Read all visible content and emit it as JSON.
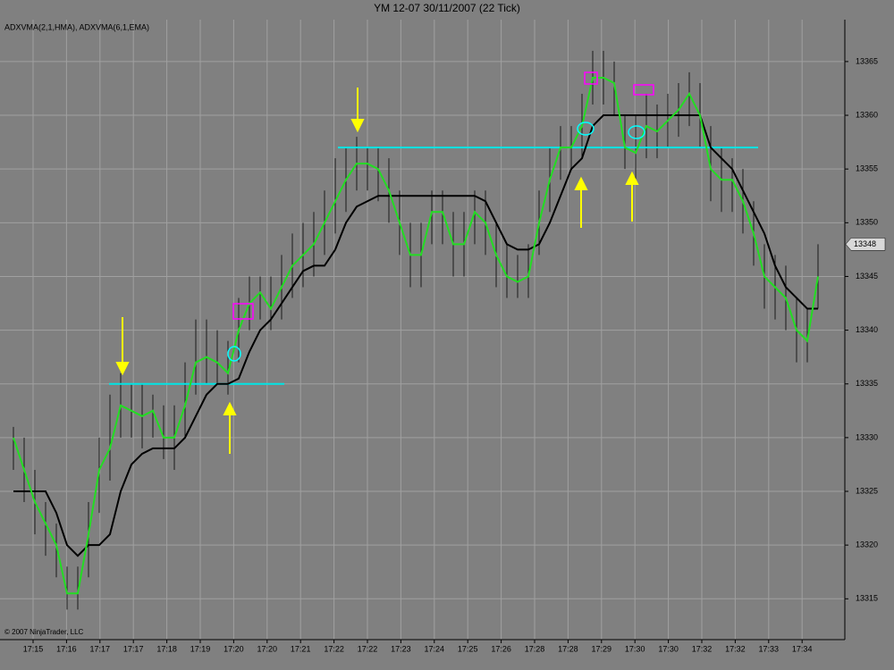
{
  "chart_data": {
    "type": "line",
    "title": "YM 12-07  30/11/2007  (22 Tick)",
    "indicator_label": "ADXVMA(2,1,HMA), ADXVMA(6,1,EMA)",
    "copyright": "© 2007 NinjaTrader, LLC",
    "x_tick_labels": [
      "17:15",
      "17:16",
      "17:17",
      "17:17",
      "17:18",
      "17:19",
      "17:20",
      "17:20",
      "17:21",
      "17:22",
      "17:22",
      "17:23",
      "17:24",
      "17:25",
      "17:26",
      "17:28",
      "17:28",
      "17:29",
      "17:30",
      "17:30",
      "17:32",
      "17:32",
      "17:33",
      "17:34"
    ],
    "ylim": [
      13311.2,
      13368.9
    ],
    "yticks": [
      13315,
      13320,
      13325,
      13330,
      13335,
      13340,
      13345,
      13350,
      13355,
      13360,
      13365
    ],
    "grid": true,
    "last_price": 13348,
    "levels": [
      13335,
      13357
    ],
    "bars": {
      "high": [
        13331,
        13330,
        13327,
        13324,
        13322,
        13318,
        13318,
        13324,
        13330,
        13334,
        13336,
        13335,
        13335,
        13334,
        13333,
        13333,
        13337,
        13341,
        13341,
        13340,
        13339,
        13343,
        13345,
        13345,
        13345,
        13347,
        13349,
        13350,
        13351,
        13353,
        13356,
        13357,
        13358,
        13357,
        13357,
        13356,
        13353,
        13350,
        13350,
        13353,
        13353,
        13351,
        13351,
        13353,
        13353,
        13350,
        13348,
        13347,
        13348,
        13353,
        13357,
        13359,
        13359,
        13362,
        13366,
        13366,
        13365,
        13360,
        13360,
        13362,
        13361,
        13362,
        13363,
        13364,
        13363,
        13359,
        13357,
        13356,
        13355,
        13352,
        13348,
        13347,
        13346,
        13343,
        13342,
        13348
      ],
      "low": [
        13327,
        13324,
        13321,
        13319,
        13317,
        13314,
        13314,
        13317,
        13323,
        13326,
        13330,
        13330,
        13329,
        13330,
        13328,
        13327,
        13330,
        13334,
        13335,
        13335,
        13334,
        13337,
        13340,
        13341,
        13340,
        13341,
        13343,
        13344,
        13345,
        13347,
        13349,
        13351,
        13353,
        13353,
        13352,
        13350,
        13347,
        13344,
        13344,
        13348,
        13348,
        13345,
        13345,
        13348,
        13347,
        13344,
        13343,
        13343,
        13343,
        13347,
        13351,
        13354,
        13355,
        13356,
        13361,
        13361,
        13360,
        13355,
        13354,
        13356,
        13356,
        13357,
        13358,
        13359,
        13357,
        13352,
        13351,
        13351,
        13349,
        13346,
        13342,
        13341,
        13340,
        13337,
        13337,
        13342
      ]
    },
    "series": [
      {
        "color": "#000000",
        "values": [
          13325,
          13325,
          13325,
          13325,
          13323,
          13320,
          13319,
          13320,
          13320,
          13321,
          13325,
          13327.5,
          13328.5,
          13329,
          13329,
          13329,
          13330,
          13332,
          13334,
          13335,
          13335,
          13335.5,
          13338,
          13340,
          13341,
          13342.5,
          13344,
          13345.5,
          13346,
          13346,
          13347.5,
          13350,
          13351.5,
          13352,
          13352.5,
          13352.5,
          13352.5,
          13352.5,
          13352.5,
          13352.5,
          13352.5,
          13352.5,
          13352.5,
          13352.5,
          13352,
          13350,
          13348,
          13347.5,
          13347.5,
          13348,
          13350,
          13352.5,
          13355,
          13356,
          13359,
          13360,
          13360,
          13360,
          13360,
          13360,
          13360,
          13360,
          13360,
          13360,
          13360,
          13357,
          13356,
          13355,
          13353,
          13351,
          13349,
          13346,
          13344,
          13343,
          13342,
          13342
        ]
      },
      {
        "color": "#22dd22",
        "values": [
          13330,
          13327,
          13324,
          13322,
          13320,
          13315.5,
          13315.5,
          13321,
          13327,
          13329,
          13333,
          13332.5,
          13332,
          13332.5,
          13330,
          13330,
          13333,
          13337,
          13337.5,
          13337,
          13336,
          13340,
          13342.5,
          13343.5,
          13342,
          13344,
          13346,
          13347,
          13348,
          13350,
          13352,
          13354,
          13355.5,
          13355.5,
          13355,
          13353,
          13350,
          13347,
          13347,
          13351,
          13351,
          13348,
          13348,
          13351,
          13350,
          13347,
          13345,
          13344.5,
          13345,
          13350,
          13354,
          13357,
          13357,
          13359,
          13363.5,
          13363.5,
          13363,
          13357,
          13356.5,
          13359,
          13358.5,
          13359.5,
          13360.5,
          13362,
          13360,
          13355,
          13354,
          13354,
          13352,
          13349,
          13345,
          13344,
          13343,
          13340,
          13339,
          13345
        ]
      }
    ]
  }
}
